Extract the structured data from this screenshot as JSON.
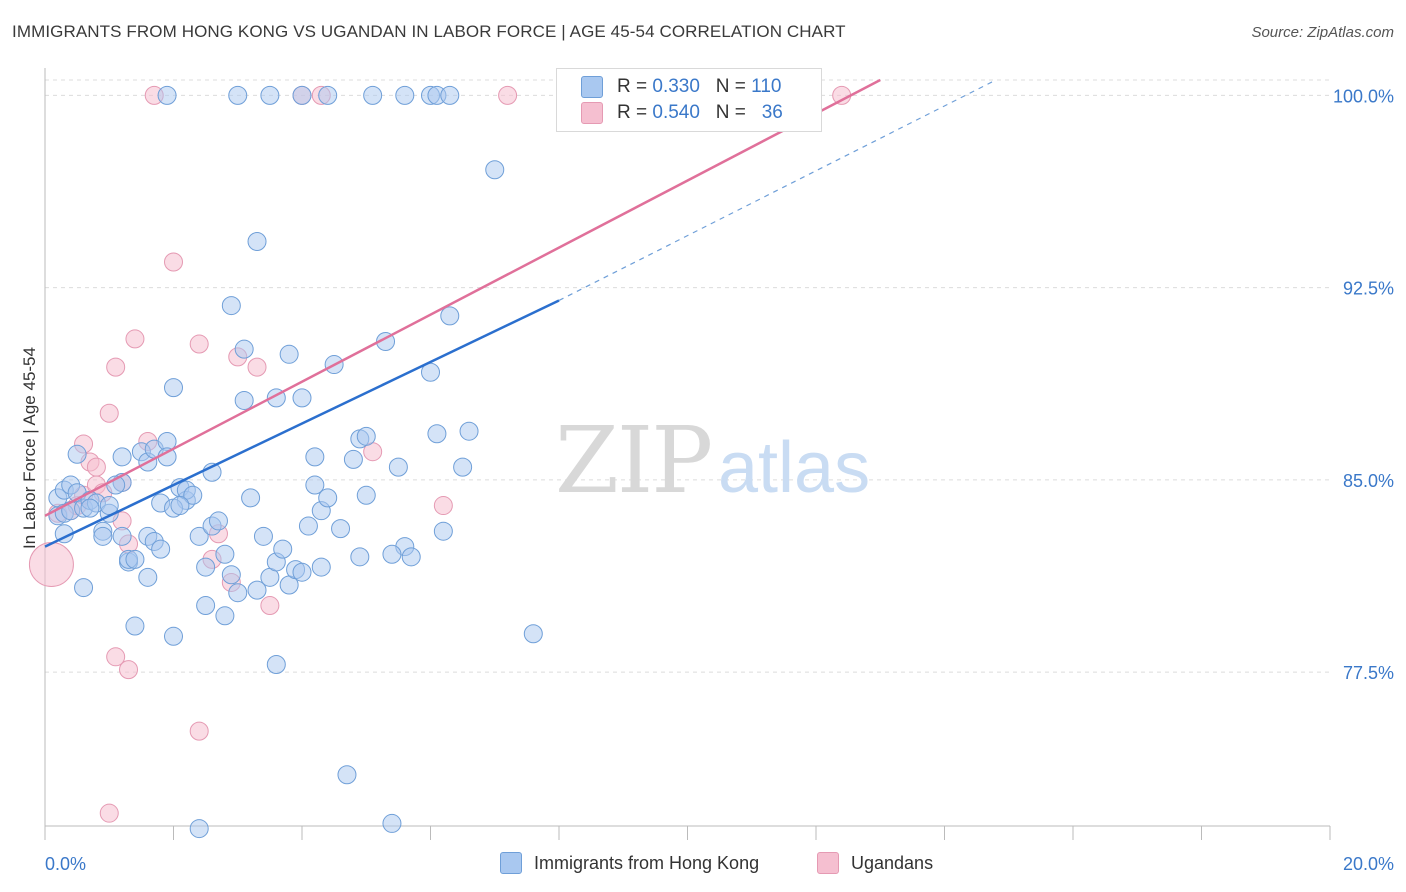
{
  "title": "IMMIGRANTS FROM HONG KONG VS UGANDAN IN LABOR FORCE | AGE 45-54 CORRELATION CHART",
  "source": "Source: ZipAtlas.com",
  "watermark": {
    "zip": "ZIP",
    "atlas": "atlas"
  },
  "colors": {
    "blue_fill": "#a9c8f0",
    "blue_stroke": "#6f9fd8",
    "blue_line": "#2b6fce",
    "pink_fill": "#f5bfd0",
    "pink_stroke": "#e59ab3",
    "pink_line": "#e0709a",
    "axis_text": "#3a78c9"
  },
  "legend_stats": [
    {
      "r_label": "R =",
      "r_value": "0.330",
      "n_label": "N =",
      "n_value": "110"
    },
    {
      "r_label": "R =",
      "r_value": "0.540",
      "n_label": "N =",
      "n_value": "36"
    }
  ],
  "chart_data": {
    "type": "scatter",
    "title": "IMMIGRANTS FROM HONG KONG VS UGANDAN IN LABOR FORCE | AGE 45-54 CORRELATION CHART",
    "xlabel": "",
    "ylabel": "In Labor Force | Age 45-54",
    "xlim": [
      0,
      20
    ],
    "ylim": [
      71.5,
      100.6
    ],
    "x_tick_labels": [
      "0.0%",
      "20.0%"
    ],
    "y_ticks": [
      77.5,
      85.0,
      92.5,
      100.0
    ],
    "y_tick_labels": [
      "77.5%",
      "85.0%",
      "92.5%",
      "100.0%"
    ],
    "grid": true,
    "legend_position": "bottom",
    "series": [
      {
        "name": "Immigrants from Hong Kong",
        "trend": {
          "x": [
            0,
            8.0
          ],
          "y": [
            82.4,
            92.0
          ],
          "dashed_to": [
            14.8,
            100.6
          ]
        },
        "points": [
          [
            0.2,
            83.6
          ],
          [
            0.2,
            84.3
          ],
          [
            0.3,
            82.9
          ],
          [
            0.3,
            84.6
          ],
          [
            0.3,
            83.7
          ],
          [
            0.4,
            84.8
          ],
          [
            0.4,
            83.8
          ],
          [
            0.5,
            84.5
          ],
          [
            0.5,
            86.0
          ],
          [
            0.6,
            80.8
          ],
          [
            0.6,
            83.9
          ],
          [
            0.7,
            84.2
          ],
          [
            0.8,
            84.1
          ],
          [
            0.9,
            83.0
          ],
          [
            0.9,
            82.8
          ],
          [
            1.0,
            83.7
          ],
          [
            1.0,
            84.0
          ],
          [
            1.2,
            85.9
          ],
          [
            1.2,
            84.9
          ],
          [
            1.2,
            82.8
          ],
          [
            1.3,
            81.8
          ],
          [
            1.3,
            81.9
          ],
          [
            1.4,
            79.3
          ],
          [
            1.5,
            86.1
          ],
          [
            1.6,
            85.7
          ],
          [
            1.6,
            82.8
          ],
          [
            1.7,
            82.6
          ],
          [
            1.7,
            86.2
          ],
          [
            1.8,
            84.1
          ],
          [
            1.8,
            82.3
          ],
          [
            1.9,
            86.5
          ],
          [
            1.9,
            85.9
          ],
          [
            2.0,
            88.6
          ],
          [
            2.0,
            78.9
          ],
          [
            2.1,
            84.7
          ],
          [
            2.2,
            84.2
          ],
          [
            2.2,
            84.6
          ],
          [
            2.3,
            84.4
          ],
          [
            2.4,
            82.8
          ],
          [
            2.5,
            81.6
          ],
          [
            2.5,
            80.1
          ],
          [
            2.6,
            85.3
          ],
          [
            2.6,
            83.2
          ],
          [
            2.7,
            83.4
          ],
          [
            2.8,
            79.7
          ],
          [
            2.9,
            81.3
          ],
          [
            2.9,
            91.8
          ],
          [
            3.0,
            80.6
          ],
          [
            3.1,
            90.1
          ],
          [
            3.1,
            88.1
          ],
          [
            3.2,
            84.3
          ],
          [
            3.3,
            94.3
          ],
          [
            3.4,
            82.8
          ],
          [
            3.5,
            81.2
          ],
          [
            3.6,
            88.2
          ],
          [
            3.6,
            81.8
          ],
          [
            3.6,
            77.8
          ],
          [
            3.7,
            82.3
          ],
          [
            3.8,
            80.9
          ],
          [
            3.8,
            89.9
          ],
          [
            3.9,
            81.5
          ],
          [
            4.0,
            88.2
          ],
          [
            4.1,
            83.2
          ],
          [
            4.2,
            85.9
          ],
          [
            4.2,
            84.8
          ],
          [
            4.3,
            83.8
          ],
          [
            4.3,
            81.6
          ],
          [
            4.4,
            84.3
          ],
          [
            4.5,
            89.5
          ],
          [
            4.6,
            83.1
          ],
          [
            4.7,
            73.5
          ],
          [
            4.8,
            85.8
          ],
          [
            4.9,
            86.6
          ],
          [
            4.9,
            82.0
          ],
          [
            5.0,
            84.4
          ],
          [
            5.0,
            86.7
          ],
          [
            5.3,
            90.4
          ],
          [
            5.4,
            71.6
          ],
          [
            5.5,
            85.5
          ],
          [
            5.6,
            82.4
          ],
          [
            5.7,
            82.0
          ],
          [
            6.0,
            89.2
          ],
          [
            6.1,
            86.8
          ],
          [
            6.2,
            83.0
          ],
          [
            6.3,
            91.4
          ],
          [
            6.5,
            85.5
          ],
          [
            6.6,
            86.9
          ],
          [
            7.0,
            97.1
          ],
          [
            7.6,
            79.0
          ],
          [
            1.9,
            100.0
          ],
          [
            2.4,
            71.4
          ],
          [
            3.0,
            100.0
          ],
          [
            3.5,
            100.0
          ],
          [
            4.0,
            100.0
          ],
          [
            4.4,
            100.0
          ],
          [
            5.1,
            100.0
          ],
          [
            5.6,
            100.0
          ],
          [
            6.0,
            100.0
          ],
          [
            6.1,
            100.0
          ],
          [
            6.3,
            100.0
          ],
          [
            2.0,
            83.9
          ],
          [
            2.1,
            84.0
          ],
          [
            1.1,
            84.8
          ],
          [
            0.7,
            83.9
          ],
          [
            1.4,
            81.9
          ],
          [
            2.8,
            82.1
          ],
          [
            3.3,
            80.7
          ],
          [
            4.0,
            81.4
          ],
          [
            5.4,
            82.1
          ],
          [
            1.6,
            81.2
          ]
        ]
      },
      {
        "name": "Ugandans",
        "trend": {
          "x": [
            0,
            13.0
          ],
          "y": [
            83.6,
            100.6
          ]
        },
        "points": [
          [
            0.1,
            81.7
          ],
          [
            0.2,
            83.7
          ],
          [
            0.4,
            83.8
          ],
          [
            0.5,
            84.0
          ],
          [
            0.6,
            84.4
          ],
          [
            0.6,
            86.4
          ],
          [
            0.7,
            85.7
          ],
          [
            0.8,
            85.5
          ],
          [
            0.8,
            84.8
          ],
          [
            0.9,
            84.5
          ],
          [
            1.0,
            87.6
          ],
          [
            1.0,
            72.0
          ],
          [
            1.1,
            89.4
          ],
          [
            1.1,
            78.1
          ],
          [
            1.2,
            84.9
          ],
          [
            1.2,
            83.4
          ],
          [
            1.3,
            82.5
          ],
          [
            1.3,
            77.6
          ],
          [
            1.4,
            90.5
          ],
          [
            1.6,
            86.5
          ],
          [
            1.7,
            100.0
          ],
          [
            2.0,
            93.5
          ],
          [
            2.4,
            90.3
          ],
          [
            2.4,
            75.2
          ],
          [
            2.6,
            81.9
          ],
          [
            2.7,
            82.9
          ],
          [
            2.9,
            81.0
          ],
          [
            3.0,
            89.8
          ],
          [
            3.3,
            89.4
          ],
          [
            3.5,
            80.1
          ],
          [
            4.0,
            100.0
          ],
          [
            4.3,
            100.0
          ],
          [
            5.1,
            86.1
          ],
          [
            6.2,
            84.0
          ],
          [
            7.2,
            100.0
          ],
          [
            12.4,
            100.0
          ]
        ]
      }
    ]
  },
  "legend_bottom": [
    {
      "label": "Immigrants from Hong Kong"
    },
    {
      "label": "Ugandans"
    }
  ]
}
